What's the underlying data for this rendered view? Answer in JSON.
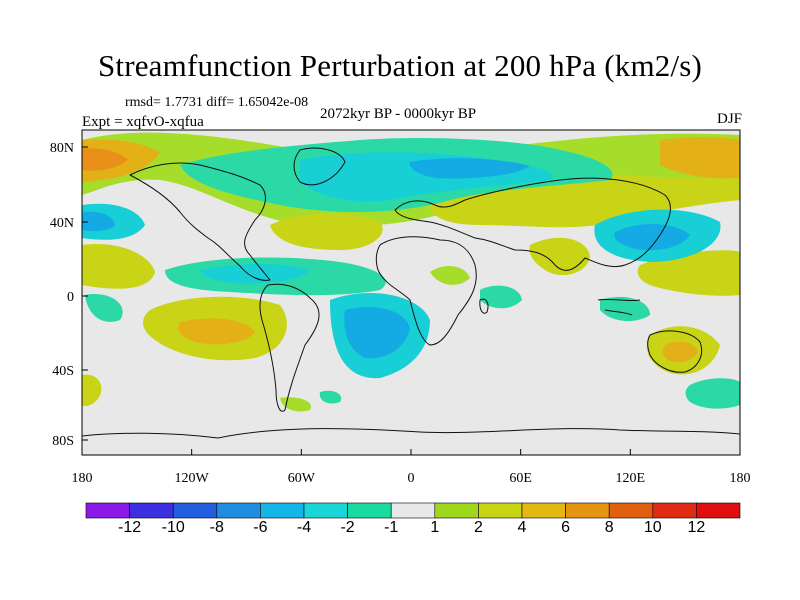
{
  "title": "Streamfunction Perturbation at 200 hPa (km2/s)",
  "stats_line": "rmsd= 1.7731  diff= 1.65042e-08",
  "experiment": "Expt = xqfvO-xqfua",
  "period": "2072kyr BP - 0000kyr BP",
  "season": "DJF",
  "lat_ticks": [
    "80N",
    "40N",
    "0",
    "40S",
    "80S"
  ],
  "lon_ticks": [
    "180",
    "120W",
    "60W",
    "0",
    "60E",
    "120E",
    "180"
  ],
  "colorbar": {
    "labels": [
      "-12",
      "-10",
      "-8",
      "-6",
      "-4",
      "-2",
      "-1",
      "1",
      "2",
      "4",
      "6",
      "8",
      "10",
      "12"
    ],
    "colors": [
      "#8a19e8",
      "#3c2fe0",
      "#1f5fe0",
      "#1f8de0",
      "#13b6e6",
      "#19d7d9",
      "#19dba2",
      "#e8e8e8",
      "#9fd81a",
      "#c6d414",
      "#e1b910",
      "#e59510",
      "#e35f10",
      "#e12a12",
      "#e00e0e"
    ]
  },
  "palette": {
    "neutral": "#e8e8e8",
    "pos_light": "#a6dd2b",
    "pos_mid": "#c9d417",
    "pos_high": "#e3b018",
    "pos_peak": "#e8901a",
    "neg_light": "#2ad9a5",
    "neg_mid": "#18cfd6",
    "neg_high": "#14aae3",
    "neg_peak": "#1a8ee0"
  }
}
